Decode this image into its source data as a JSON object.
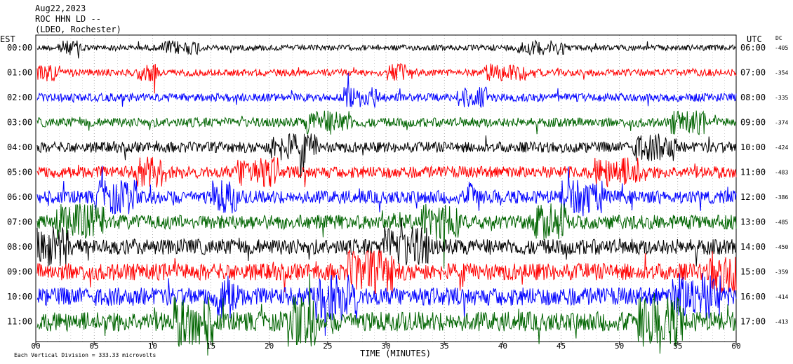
{
  "header": {
    "date": "Aug22,2023",
    "station": "ROC HHN LD --",
    "network": "(LDEO, Rochester)"
  },
  "left_axis_label": "EST",
  "right_axis_label": "UTC",
  "dc_label": "DC",
  "x_axis_title": "TIME (MINUTES)",
  "scale_note": "Each Vertical Division = 333.33 microvolts",
  "colors": {
    "black": "#000000",
    "red": "#ff0000",
    "blue": "#0000ff",
    "green": "#006400"
  },
  "chart_data": {
    "type": "line",
    "title": "ROC HHN LD --",
    "xlabel": "TIME (MINUTES)",
    "xlim": [
      0,
      60
    ],
    "x_ticks": [
      "00",
      "05",
      "10",
      "15",
      "20",
      "25",
      "30",
      "35",
      "40",
      "45",
      "50",
      "55",
      "60"
    ],
    "grid": true,
    "rows": [
      {
        "est": "00:00",
        "utc": "06:00",
        "dc": "-405",
        "color": "#000000"
      },
      {
        "est": "01:00",
        "utc": "07:00",
        "dc": "-354",
        "color": "#ff0000"
      },
      {
        "est": "02:00",
        "utc": "08:00",
        "dc": "-335",
        "color": "#0000ff"
      },
      {
        "est": "03:00",
        "utc": "09:00",
        "dc": "-374",
        "color": "#006400"
      },
      {
        "est": "04:00",
        "utc": "10:00",
        "dc": "-424",
        "color": "#000000"
      },
      {
        "est": "05:00",
        "utc": "11:00",
        "dc": "-483",
        "color": "#ff0000"
      },
      {
        "est": "06:00",
        "utc": "12:00",
        "dc": "-386",
        "color": "#0000ff"
      },
      {
        "est": "07:00",
        "utc": "13:00",
        "dc": "-485",
        "color": "#006400"
      },
      {
        "est": "08:00",
        "utc": "14:00",
        "dc": "-450",
        "color": "#000000"
      },
      {
        "est": "09:00",
        "utc": "15:00",
        "dc": "-359",
        "color": "#ff0000"
      },
      {
        "est": "10:00",
        "utc": "16:00",
        "dc": "-414",
        "color": "#0000ff"
      },
      {
        "est": "11:00",
        "utc": "17:00",
        "dc": "-413",
        "color": "#006400"
      }
    ]
  }
}
